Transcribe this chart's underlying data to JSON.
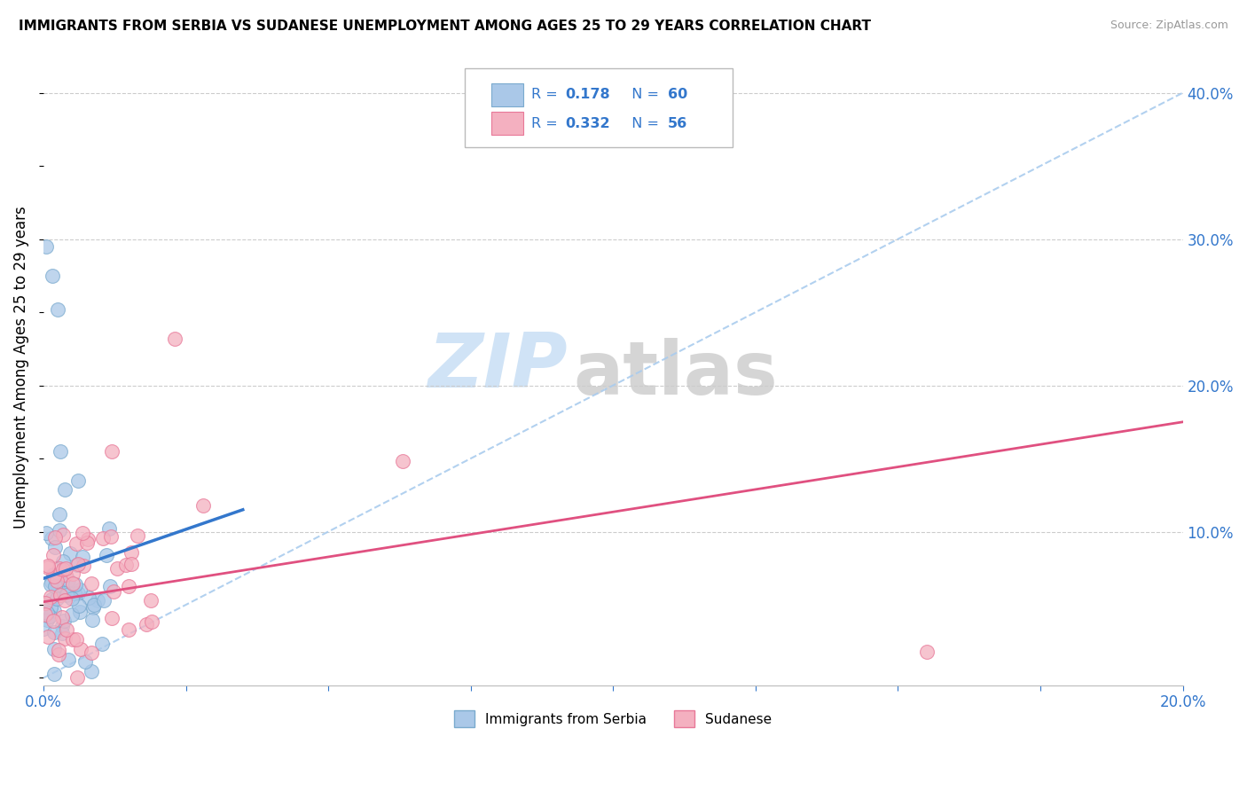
{
  "title": "IMMIGRANTS FROM SERBIA VS SUDANESE UNEMPLOYMENT AMONG AGES 25 TO 29 YEARS CORRELATION CHART",
  "source": "Source: ZipAtlas.com",
  "ylabel": "Unemployment Among Ages 25 to 29 years",
  "xlim": [
    0.0,
    0.2
  ],
  "ylim": [
    -0.005,
    0.43
  ],
  "ytick_right_vals": [
    0.0,
    0.1,
    0.2,
    0.3,
    0.4
  ],
  "ytick_right_labels": [
    "",
    "10.0%",
    "20.0%",
    "30.0%",
    "40.0%"
  ],
  "serbia_color": "#aac8e8",
  "serbia_edge": "#7aaace",
  "sudanese_color": "#f4b0c0",
  "sudanese_edge": "#e87898",
  "serbia_line_color": "#3377cc",
  "sudanese_line_color": "#e05080",
  "dashed_line_color": "#aaccee",
  "grid_color": "#cccccc",
  "legend_text_color": "#3377cc",
  "watermark_zip_color": "#c8dff5",
  "watermark_atlas_color": "#c8c8c8",
  "serbia_line_x0": 0.0,
  "serbia_line_x1": 0.035,
  "serbia_line_y0": 0.068,
  "serbia_line_y1": 0.115,
  "sudanese_line_x0": 0.0,
  "sudanese_line_x1": 0.2,
  "sudanese_line_y0": 0.052,
  "sudanese_line_y1": 0.175
}
